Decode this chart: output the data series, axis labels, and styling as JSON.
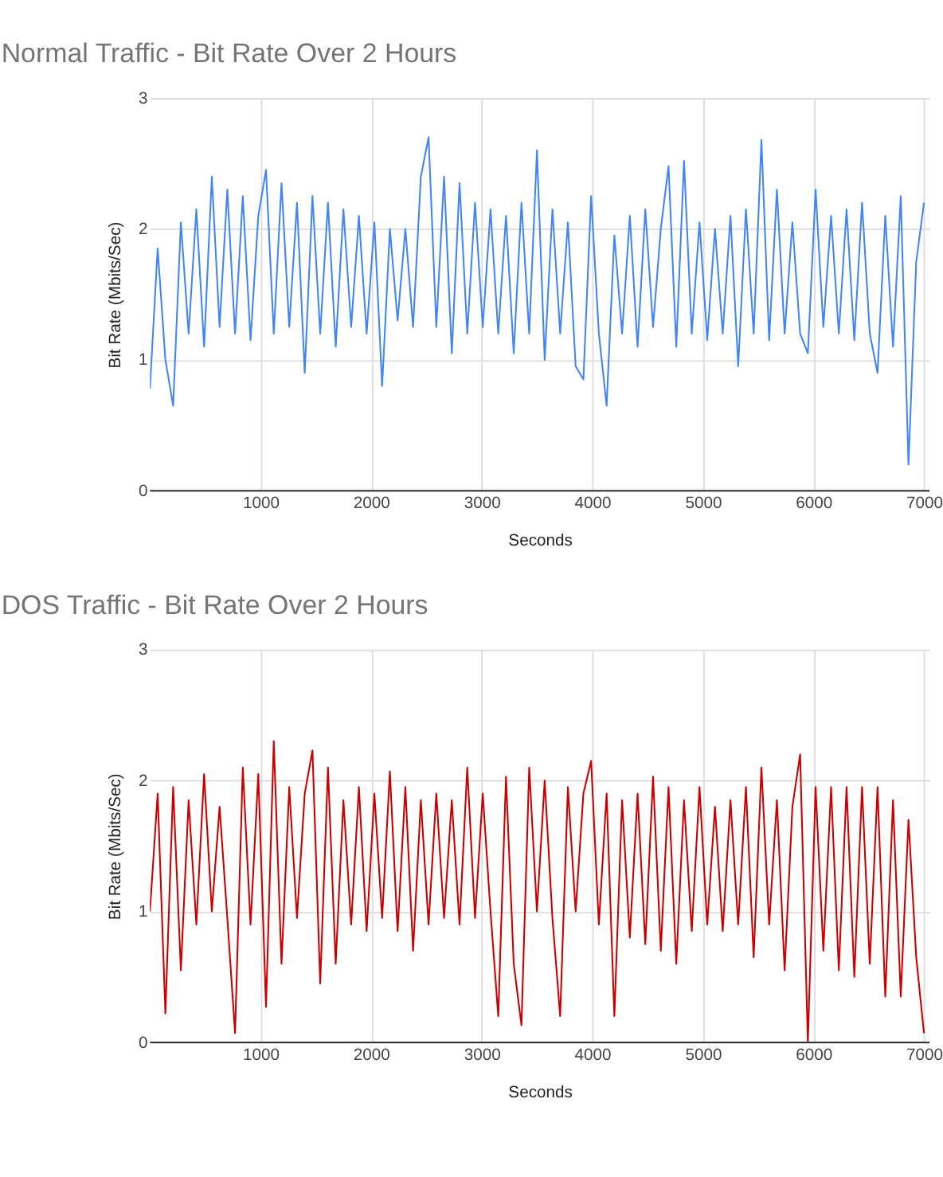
{
  "chart_data": [
    {
      "type": "line",
      "title": "Normal Traffic - Bit Rate Over 2 Hours",
      "xlabel": "Seconds",
      "ylabel": "Bit Rate (Mbits/Sec)",
      "xlim": [
        0,
        7050
      ],
      "ylim": [
        0,
        3
      ],
      "xticks": [
        1000,
        2000,
        3000,
        4000,
        5000,
        6000,
        7000
      ],
      "yticks": [
        0,
        1,
        2,
        3
      ],
      "grid": true,
      "x": [
        0,
        70,
        140,
        210,
        280,
        350,
        420,
        490,
        560,
        630,
        700,
        770,
        840,
        910,
        980,
        1050,
        1120,
        1190,
        1260,
        1330,
        1400,
        1470,
        1540,
        1610,
        1680,
        1750,
        1820,
        1890,
        1960,
        2030,
        2100,
        2170,
        2240,
        2310,
        2380,
        2450,
        2520,
        2590,
        2660,
        2730,
        2800,
        2870,
        2940,
        3010,
        3080,
        3150,
        3220,
        3290,
        3360,
        3430,
        3500,
        3570,
        3640,
        3710,
        3780,
        3850,
        3920,
        3990,
        4060,
        4130,
        4200,
        4270,
        4340,
        4410,
        4480,
        4550,
        4620,
        4690,
        4760,
        4830,
        4900,
        4970,
        5040,
        5110,
        5180,
        5250,
        5320,
        5390,
        5460,
        5530,
        5600,
        5670,
        5740,
        5810,
        5880,
        5950,
        6020,
        6090,
        6160,
        6230,
        6300,
        6370,
        6440,
        6510,
        6580,
        6650,
        6720,
        6790,
        6860,
        6930,
        7000
      ],
      "series": [
        {
          "color": "#4285f4",
          "values": [
            0.78,
            1.85,
            1.0,
            0.65,
            2.05,
            1.2,
            2.15,
            1.1,
            2.4,
            1.25,
            2.3,
            1.2,
            2.25,
            1.15,
            2.1,
            2.45,
            1.2,
            2.35,
            1.25,
            2.2,
            0.9,
            2.25,
            1.2,
            2.2,
            1.1,
            2.15,
            1.25,
            2.1,
            1.2,
            2.05,
            0.8,
            2.0,
            1.3,
            2.0,
            1.25,
            2.4,
            2.7,
            1.25,
            2.4,
            1.05,
            2.35,
            1.2,
            2.2,
            1.25,
            2.15,
            1.2,
            2.1,
            1.05,
            2.2,
            1.2,
            2.6,
            1.0,
            2.15,
            1.2,
            2.05,
            0.95,
            0.85,
            2.25,
            1.2,
            0.65,
            1.95,
            1.2,
            2.1,
            1.1,
            2.15,
            1.25,
            2.0,
            2.48,
            1.1,
            2.52,
            1.2,
            2.05,
            1.15,
            2.0,
            1.2,
            2.1,
            0.95,
            2.15,
            1.2,
            2.68,
            1.15,
            2.3,
            1.2,
            2.05,
            1.2,
            1.05,
            2.3,
            1.25,
            2.1,
            1.2,
            2.15,
            1.15,
            2.2,
            1.2,
            0.9,
            2.1,
            1.1,
            2.25,
            0.2,
            1.75,
            2.2
          ]
        }
      ]
    },
    {
      "type": "line",
      "title": "DOS Traffic - Bit Rate Over 2 Hours",
      "xlabel": "Seconds",
      "ylabel": "Bit Rate (Mbits/Sec)",
      "xlim": [
        0,
        7050
      ],
      "ylim": [
        0,
        3
      ],
      "xticks": [
        1000,
        2000,
        3000,
        4000,
        5000,
        6000,
        7000
      ],
      "yticks": [
        0,
        1,
        2,
        3
      ],
      "grid": true,
      "x": [
        0,
        70,
        140,
        210,
        280,
        350,
        420,
        490,
        560,
        630,
        700,
        770,
        840,
        910,
        980,
        1050,
        1120,
        1190,
        1260,
        1330,
        1400,
        1470,
        1540,
        1610,
        1680,
        1750,
        1820,
        1890,
        1960,
        2030,
        2100,
        2170,
        2240,
        2310,
        2380,
        2450,
        2520,
        2590,
        2660,
        2730,
        2800,
        2870,
        2940,
        3010,
        3080,
        3150,
        3220,
        3290,
        3360,
        3430,
        3500,
        3570,
        3640,
        3710,
        3780,
        3850,
        3920,
        3990,
        4060,
        4130,
        4200,
        4270,
        4340,
        4410,
        4480,
        4550,
        4620,
        4690,
        4760,
        4830,
        4900,
        4970,
        5040,
        5110,
        5180,
        5250,
        5320,
        5390,
        5460,
        5530,
        5600,
        5670,
        5740,
        5810,
        5880,
        5950,
        6020,
        6090,
        6160,
        6230,
        6300,
        6370,
        6440,
        6510,
        6580,
        6650,
        6720,
        6790,
        6860,
        6930,
        7000
      ],
      "series": [
        {
          "color": "#cc0000",
          "values": [
            1.0,
            1.9,
            0.22,
            1.95,
            0.55,
            1.85,
            0.9,
            2.05,
            1.0,
            1.8,
            0.95,
            0.07,
            2.1,
            0.9,
            2.05,
            0.27,
            2.3,
            0.6,
            1.95,
            0.95,
            1.9,
            2.23,
            0.45,
            2.1,
            0.6,
            1.85,
            0.9,
            1.95,
            0.85,
            1.9,
            0.95,
            2.07,
            0.85,
            1.95,
            0.7,
            1.85,
            0.9,
            1.9,
            0.95,
            1.85,
            0.9,
            2.1,
            0.95,
            1.9,
            1.0,
            0.2,
            2.03,
            0.6,
            0.13,
            2.1,
            1.0,
            2.0,
            0.95,
            0.2,
            1.95,
            1.0,
            1.9,
            2.15,
            0.9,
            1.9,
            0.2,
            1.85,
            0.8,
            1.9,
            0.75,
            2.03,
            0.7,
            1.95,
            0.6,
            1.85,
            0.85,
            1.95,
            0.9,
            1.8,
            0.85,
            1.85,
            0.9,
            1.95,
            0.65,
            2.1,
            0.9,
            1.85,
            0.55,
            1.8,
            2.2,
            0.0,
            1.95,
            0.7,
            1.95,
            0.55,
            1.95,
            0.5,
            1.95,
            0.6,
            1.95,
            0.35,
            1.85,
            0.35,
            1.7,
            0.65,
            0.07
          ]
        }
      ]
    }
  ]
}
